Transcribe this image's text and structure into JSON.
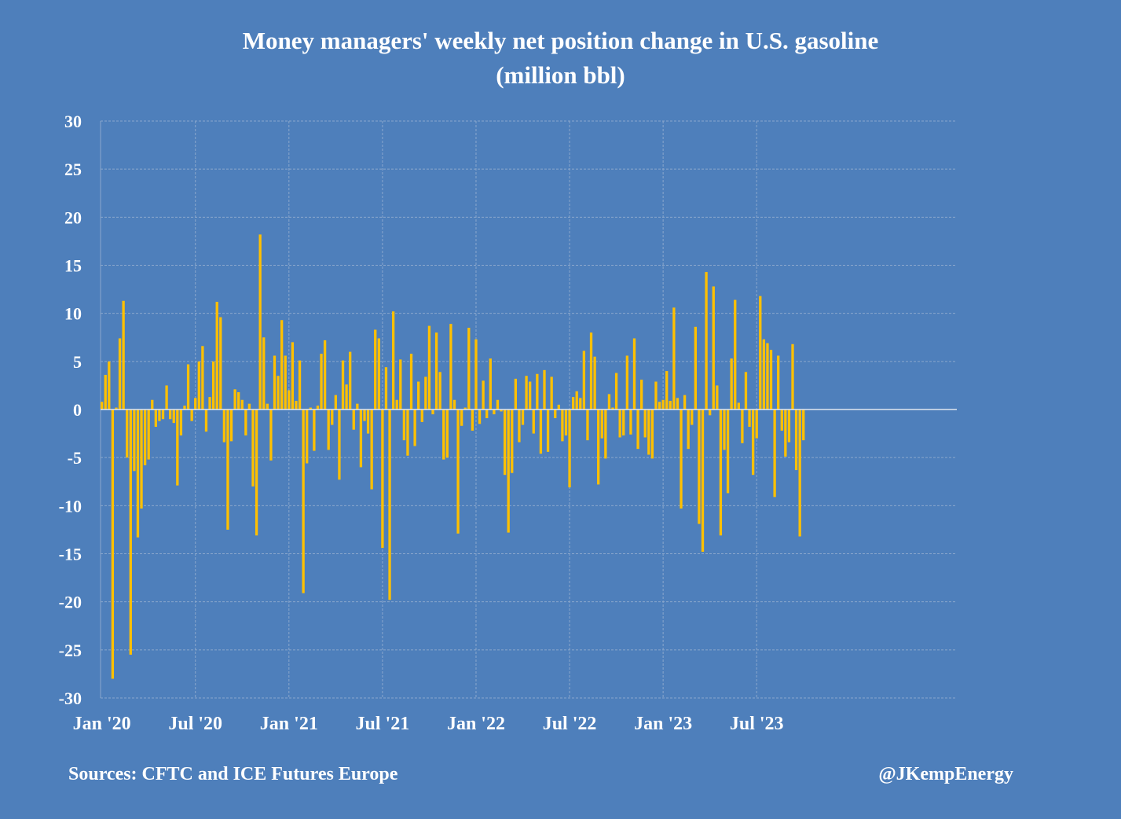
{
  "title_lines": [
    "Money managers' weekly net position change in U.S. gasoline",
    "(million bbl)"
  ],
  "footer": {
    "source": "Sources: CFTC and ICE Futures Europe",
    "handle": "@JKempEnergy"
  },
  "colors": {
    "background": "#4e7fbb",
    "bar": "#ffc000",
    "grid": "#8aa7cc",
    "text": "#ffffff"
  },
  "chart_data": {
    "type": "bar",
    "title": "Money managers' weekly net position change in U.S. gasoline (million bbl)",
    "xlabel": "",
    "ylabel": "",
    "ylim": [
      -30,
      30
    ],
    "yticks": [
      30,
      25,
      20,
      15,
      10,
      5,
      0,
      -5,
      -10,
      -15,
      -20,
      -25,
      -30
    ],
    "x_tick_labels": [
      "Jan '20",
      "Jul '20",
      "Jan '21",
      "Jul '21",
      "Jan '22",
      "Jul '22",
      "Jan '23",
      "Jul '23"
    ],
    "x_tick_bar_index": [
      0,
      26,
      52,
      78,
      104,
      130,
      156,
      182
    ],
    "grid": true,
    "legend": "none",
    "series": [
      {
        "values": [
          0.8,
          3.6,
          5.0,
          -28.0,
          0.2,
          7.4,
          11.3,
          -5.0,
          -25.5,
          -6.4,
          -13.3,
          -10.3,
          -5.8,
          -5.2,
          1.0,
          -1.8,
          -1.2,
          -1.0,
          2.5,
          -1.0,
          -1.4,
          -7.9,
          -2.7,
          0.4,
          4.7,
          -1.2,
          1.2,
          5.0,
          6.6,
          -2.3,
          1.3,
          5.0,
          11.2,
          9.6,
          -3.4,
          -12.5,
          -3.3,
          2.1,
          1.8,
          1.0,
          -2.7,
          0.6,
          -8.0,
          -13.1,
          18.2,
          7.5,
          0.6,
          -5.3,
          5.6,
          3.5,
          9.3,
          5.6,
          2.0,
          7.0,
          0.9,
          5.1,
          -19.1,
          -5.6,
          0.2,
          -4.3,
          0.4,
          5.8,
          7.2,
          -4.2,
          -1.6,
          1.5,
          -7.3,
          5.1,
          2.6,
          6.0,
          -2.1,
          0.6,
          -6.0,
          -1.2,
          -2.5,
          -8.3,
          8.3,
          7.4,
          -14.4,
          4.4,
          -19.8,
          10.2,
          1.0,
          5.2,
          -3.2,
          -4.8,
          5.8,
          -3.8,
          2.9,
          -1.3,
          3.4,
          8.7,
          -0.5,
          8.0,
          3.9,
          -5.2,
          -5.0,
          8.9,
          1.0,
          -12.9,
          -1.7,
          0.2,
          8.5,
          -2.2,
          7.3,
          -1.5,
          3.0,
          -0.9,
          5.3,
          -0.5,
          1.0,
          -0.2,
          -6.8,
          -12.8,
          -6.6,
          3.2,
          -3.4,
          -1.6,
          3.5,
          2.9,
          -2.5,
          3.7,
          -4.6,
          4.1,
          -4.4,
          3.4,
          -0.9,
          0.5,
          -3.3,
          -2.7,
          -8.1,
          1.3,
          1.9,
          1.2,
          6.1,
          -3.2,
          8.0,
          5.5,
          -7.8,
          -3.0,
          -5.1,
          1.6,
          0.2,
          3.8,
          -2.9,
          -2.7,
          5.6,
          -2.6,
          7.4,
          -4.1,
          3.1,
          -2.9,
          -4.7,
          -5.1,
          2.9,
          0.8,
          1.0,
          4.0,
          0.9,
          10.6,
          1.2,
          -10.3,
          1.5,
          -4.1,
          -1.6,
          8.6,
          -11.9,
          -14.8,
          14.3,
          -0.6,
          12.8,
          2.5,
          -13.1,
          -4.2,
          -8.7,
          5.3,
          11.4,
          0.7,
          -3.5,
          3.9,
          -1.8,
          -6.8,
          -3.0,
          11.8,
          7.3,
          6.9,
          6.2,
          -9.1,
          5.6,
          -2.2,
          -4.9,
          -3.4,
          6.8,
          -6.3,
          -13.2,
          -3.2
        ]
      }
    ]
  }
}
